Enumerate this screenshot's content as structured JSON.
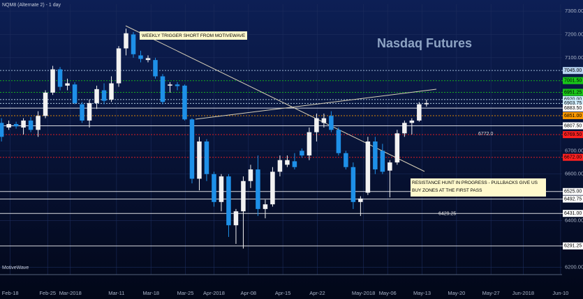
{
  "chart_data": {
    "type": "candlestick",
    "title": "Nasdaq Futures",
    "subtitle": "NQM8 (Alternate 2) - 1 day",
    "watermark": "MotiveWave",
    "up_color": "#f2f2f2",
    "down_color": "#1e90e8",
    "x": [
      0,
      1,
      2,
      3,
      4,
      5,
      6,
      7,
      8,
      9,
      10,
      11,
      12,
      13,
      14,
      15,
      16,
      17,
      18,
      19,
      20,
      21,
      22,
      23,
      24,
      25,
      26,
      27,
      28,
      29,
      30,
      31,
      32,
      33,
      34,
      35,
      36,
      37,
      38,
      39,
      40,
      41,
      42,
      43,
      44,
      45,
      46,
      47,
      48,
      49,
      50,
      51,
      52,
      53,
      54,
      55,
      56,
      57,
      58
    ],
    "open": [
      6820,
      6800,
      6815,
      6800,
      6830,
      6790,
      6850,
      6950,
      7050,
      6980,
      6985,
      6900,
      6830,
      6905,
      6960,
      6920,
      6990,
      7140,
      7200,
      7110,
      7090,
      7090,
      7020,
      6980,
      6985,
      6980,
      6835,
      6580,
      6740,
      6600,
      6480,
      6590,
      6380,
      6440,
      6570,
      6620,
      6450,
      6470,
      6610,
      6640,
      6655,
      6700,
      6680,
      6780,
      6820,
      6850,
      6790,
      6690,
      6630,
      6480,
      6520,
      6740,
      6700,
      6615,
      6650,
      6775,
      6820,
      6830,
      6900
    ],
    "high": [
      6840,
      6830,
      6825,
      6840,
      6845,
      6870,
      6960,
      7065,
      7060,
      7010,
      6995,
      6910,
      6920,
      6980,
      6990,
      7020,
      7150,
      7225,
      7210,
      7130,
      7110,
      7100,
      7030,
      6995,
      6995,
      6985,
      6840,
      6760,
      6750,
      6610,
      6600,
      6600,
      6450,
      6590,
      6640,
      6680,
      6490,
      6630,
      6680,
      6680,
      6690,
      6710,
      6800,
      6860,
      6860,
      6870,
      6800,
      6700,
      6650,
      6505,
      6760,
      6760,
      6730,
      6660,
      6790,
      6830,
      6840,
      6910,
      6920
    ],
    "low": [
      6740,
      6790,
      6795,
      6770,
      6780,
      6760,
      6840,
      6940,
      6960,
      6960,
      6900,
      6820,
      6800,
      6880,
      6900,
      6910,
      6975,
      7110,
      7100,
      7080,
      7080,
      7010,
      6900,
      6950,
      6960,
      6830,
      6560,
      6530,
      6570,
      6460,
      6440,
      6330,
      6300,
      6280,
      6540,
      6420,
      6410,
      6460,
      6590,
      6630,
      6620,
      6670,
      6660,
      6740,
      6800,
      6780,
      6680,
      6620,
      6450,
      6420,
      6510,
      6600,
      6600,
      6500,
      6640,
      6760,
      6770,
      6825,
      6890
    ],
    "close": [
      6760,
      6815,
      6805,
      6830,
      6790,
      6850,
      6950,
      7050,
      6975,
      6990,
      6905,
      6830,
      6905,
      6965,
      6915,
      6990,
      7140,
      7205,
      7115,
      7095,
      7098,
      7020,
      6910,
      6985,
      6978,
      6835,
      6580,
      6740,
      6600,
      6480,
      6590,
      6380,
      6440,
      6570,
      6620,
      6450,
      6470,
      6610,
      6660,
      6660,
      6630,
      6680,
      6780,
      6840,
      6840,
      6790,
      6690,
      6630,
      6480,
      6495,
      6740,
      6620,
      6610,
      6650,
      6775,
      6820,
      6830,
      6900,
      6905
    ],
    "xlim": [
      -0.2,
      76.5
    ],
    "xticks": [
      {
        "value": 1.2,
        "label": "Feb-18"
      },
      {
        "value": 6.3,
        "label": "Feb-25"
      },
      {
        "value": 9.4,
        "label": "Mar-2018"
      },
      {
        "value": 15.7,
        "label": "Mar-11"
      },
      {
        "value": 20.4,
        "label": "Mar-18"
      },
      {
        "value": 25.1,
        "label": "Mar-25"
      },
      {
        "value": 29.0,
        "label": "Apr-2018"
      },
      {
        "value": 33.7,
        "label": "Apr-08"
      },
      {
        "value": 38.4,
        "label": "Apr-15"
      },
      {
        "value": 43.1,
        "label": "Apr-22"
      },
      {
        "value": 49.4,
        "label": "May-2018"
      },
      {
        "value": 52.7,
        "label": "May-06"
      },
      {
        "value": 57.4,
        "label": "May-13"
      },
      {
        "value": 62.1,
        "label": "May-20"
      },
      {
        "value": 66.8,
        "label": "May-27"
      },
      {
        "value": 71.2,
        "label": "Jun-2018"
      },
      {
        "value": 76.3,
        "label": "Jun-10"
      }
    ],
    "ylim": [
      6180,
      7330
    ],
    "yticks": [
      {
        "value": 7300,
        "label": "7300.00"
      },
      {
        "value": 7200,
        "label": "7200.00"
      },
      {
        "value": 7100,
        "label": "7100.00"
      },
      {
        "value": 6700,
        "label": "6700.00"
      },
      {
        "value": 6600,
        "label": "6600.00"
      },
      {
        "value": 6400,
        "label": "6400.00"
      },
      {
        "value": 6200,
        "label": "6200.00"
      }
    ],
    "grid": true,
    "levels": [
      {
        "value": 7045,
        "label": "7045.00",
        "color": "#b8d4f0"
      },
      {
        "value": 7001.5,
        "label": "7001.50",
        "color": "#19c819"
      },
      {
        "value": 6951.25,
        "label": "6951.25",
        "color": "#19c819"
      },
      {
        "value": 6920,
        "label": "6920.00",
        "color": "#cfeeff"
      },
      {
        "value": 6903.75,
        "label": "6903.75",
        "color": "#cfeeff"
      },
      {
        "value": 6883.5,
        "label": "6883.50",
        "color": "#ffffff"
      },
      {
        "value": 6851,
        "label": "6851.00",
        "color": "#ff9a00"
      },
      {
        "value": 6807.5,
        "label": "6807.50",
        "color": "#ffffff"
      },
      {
        "value": 6769.5,
        "label": "6769.50",
        "color": "#ff2020"
      },
      {
        "value": 6672,
        "label": "6672.00",
        "color": "#ff2020"
      },
      {
        "value": 6525,
        "label": "6525.00",
        "color": "#ffffff"
      },
      {
        "value": 6492.75,
        "label": "6492.75",
        "color": "#ffffff"
      },
      {
        "value": 6431,
        "label": "6431.00",
        "color": "#ffffff"
      },
      {
        "value": 6291.25,
        "label": "6291.25",
        "color": "#ffffff"
      }
    ],
    "level_notes": [
      {
        "value": 6772,
        "label": "6772.0"
      },
      {
        "value": 6429.25,
        "label": "6429.25"
      }
    ],
    "annotations": [
      "WEEKLY TRIGGER SHORT FROM MOTIVEWAVE",
      "RESISTANCE HUNT IN PROGRESS - PULLBACKS GIVE US BUY ZONES AT THE FIRST PASS"
    ]
  }
}
